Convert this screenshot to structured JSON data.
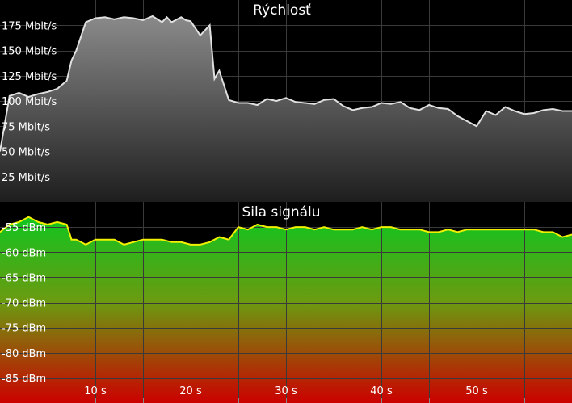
{
  "chart_data": [
    {
      "type": "area",
      "title": "Rýchlosť",
      "ylim": [
        0,
        200
      ],
      "y_ticks": [
        {
          "value": 25,
          "label": "25 Mbit/s"
        },
        {
          "value": 50,
          "label": "50 Mbit/s"
        },
        {
          "value": 75,
          "label": "75 Mbit/s"
        },
        {
          "value": 100,
          "label": "100 Mbit/s"
        },
        {
          "value": 125,
          "label": "125 Mbit/s"
        },
        {
          "value": 150,
          "label": "150 Mbit/s"
        },
        {
          "value": 175,
          "label": "175 Mbit/s"
        }
      ],
      "xlim": [
        0,
        60
      ],
      "grid": true,
      "line_color": "#e0e0e0",
      "series": [
        {
          "x": [
            0,
            1,
            2,
            3,
            4,
            5,
            6,
            7,
            7.5,
            8,
            9,
            10,
            11,
            12,
            13,
            14,
            15,
            16,
            17,
            17.5,
            18,
            19,
            19.5,
            20,
            21,
            22,
            22.5,
            23,
            24,
            25,
            26,
            27,
            28,
            29,
            30,
            31,
            32,
            33,
            34,
            35,
            36,
            37,
            38,
            39,
            40,
            41,
            42,
            43,
            44,
            45,
            46,
            47,
            48,
            49,
            50,
            51,
            52,
            53,
            54,
            55,
            56,
            57,
            58,
            59,
            60
          ],
          "y": [
            50,
            105,
            108,
            104,
            107,
            109,
            112,
            120,
            140,
            150,
            178,
            182,
            183,
            181,
            183,
            182,
            180,
            184,
            178,
            183,
            178,
            183,
            180,
            179,
            165,
            175,
            122,
            130,
            101,
            98,
            98,
            96,
            102,
            100,
            103,
            99,
            98,
            97,
            101,
            102,
            95,
            91,
            93,
            94,
            98,
            97,
            99,
            93,
            91,
            96,
            93,
            92,
            85,
            80,
            75,
            90,
            86,
            94,
            90,
            87,
            88,
            91,
            92,
            90,
            90
          ]
        }
      ]
    },
    {
      "type": "area",
      "title": "Sila signálu",
      "ylim": [
        -90,
        -50
      ],
      "y_ticks": [
        {
          "value": -55,
          "label": "-55 dBm"
        },
        {
          "value": -60,
          "label": "-60 dBm"
        },
        {
          "value": -65,
          "label": "-65 dBm"
        },
        {
          "value": -70,
          "label": "-70 dBm"
        },
        {
          "value": -75,
          "label": "-75 dBm"
        },
        {
          "value": -80,
          "label": "-80 dBm"
        },
        {
          "value": -85,
          "label": "-85 dBm"
        }
      ],
      "xlim": [
        0,
        60
      ],
      "x_ticks": [
        {
          "value": 10,
          "label": "10 s"
        },
        {
          "value": 20,
          "label": "20 s"
        },
        {
          "value": 30,
          "label": "30 s"
        },
        {
          "value": 40,
          "label": "40 s"
        },
        {
          "value": 50,
          "label": "50 s"
        }
      ],
      "grid": true,
      "line_color": "#f0f000",
      "gradient": [
        "#00cc22",
        "#cc0000"
      ],
      "series": [
        {
          "x": [
            0,
            1,
            2,
            3,
            4,
            5,
            6,
            7,
            7.5,
            8,
            9,
            10,
            11,
            12,
            13,
            14,
            15,
            16,
            17,
            18,
            19,
            20,
            21,
            22,
            23,
            24,
            25,
            26,
            27,
            28,
            29,
            30,
            31,
            32,
            33,
            34,
            35,
            36,
            37,
            38,
            39,
            40,
            41,
            42,
            43,
            44,
            45,
            46,
            47,
            48,
            49,
            50,
            51,
            52,
            53,
            54,
            55,
            56,
            57,
            58,
            59,
            60
          ],
          "y": [
            -56,
            -54.5,
            -54,
            -53,
            -54,
            -54.5,
            -54,
            -54.5,
            -57.5,
            -57.5,
            -58.5,
            -57.5,
            -57.5,
            -57.5,
            -58.5,
            -58,
            -57.5,
            -57.5,
            -57.5,
            -58,
            -58,
            -58.5,
            -58.5,
            -58,
            -57,
            -57.5,
            -55,
            -55.5,
            -54.5,
            -55,
            -55,
            -55.5,
            -55,
            -55,
            -55.5,
            -55,
            -55.5,
            -55.5,
            -55.5,
            -55,
            -55.5,
            -55,
            -55,
            -55.5,
            -55.5,
            -55.5,
            -56,
            -56,
            -55.5,
            -56,
            -55.5,
            -55.5,
            -55.5,
            -55.5,
            -55.5,
            -55.5,
            -55.5,
            -55.5,
            -56,
            -56,
            -57,
            -56.5
          ]
        }
      ]
    }
  ]
}
